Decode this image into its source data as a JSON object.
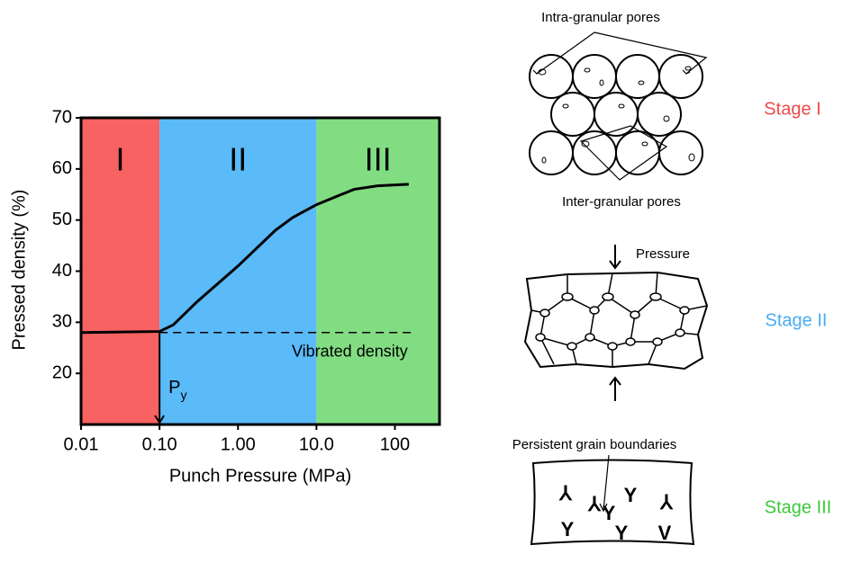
{
  "chart_data": {
    "type": "line",
    "xlabel": "Punch Pressure (MPa)",
    "ylabel": "Pressed density (%)",
    "xscale": "log",
    "xlim": [
      0.01,
      370
    ],
    "ylim": [
      10,
      70
    ],
    "xticks": [
      {
        "value": 0.01,
        "label": "0.01"
      },
      {
        "value": 0.1,
        "label": "0.10"
      },
      {
        "value": 1,
        "label": "1.00"
      },
      {
        "value": 10,
        "label": "10.0"
      },
      100
    ],
    "yticks": [
      20,
      30,
      40,
      50,
      60,
      70
    ],
    "regions": [
      {
        "label": "I",
        "range": [
          0.01,
          0.1
        ],
        "color": "#f86262"
      },
      {
        "label": "II",
        "range": [
          0.1,
          10
        ],
        "color": "#5bbaf8"
      },
      {
        "label": "III",
        "range": [
          10,
          370
        ],
        "color": "#82dd82"
      }
    ],
    "series": [
      {
        "color": "#000000",
        "style": "solid",
        "x": [
          0.01,
          0.1,
          0.15,
          0.3,
          1,
          3,
          5,
          10,
          30,
          60,
          150
        ],
        "values": [
          28,
          28.2,
          29.5,
          34,
          41,
          48,
          50.5,
          53,
          56,
          56.7,
          57
        ]
      },
      {
        "color": "#000000",
        "style": "dashed",
        "label": "Vibrated density",
        "x": [
          0.1,
          180
        ],
        "values": [
          28,
          28
        ]
      }
    ],
    "marker": {
      "text": "P",
      "subscript": "y",
      "x": 0.1,
      "y": 28
    }
  },
  "diagram": {
    "intra_label": "Intra-granular pores",
    "inter_label": "Inter-granular pores",
    "pressure_label": "Pressure",
    "boundaries_label": "Persistent grain boundaries",
    "stages": [
      {
        "label": "Stage I",
        "color": "#f04a4a"
      },
      {
        "label": "Stage II",
        "color": "#4aaef0"
      },
      {
        "label": "Stage III",
        "color": "#3cc83c"
      }
    ]
  }
}
